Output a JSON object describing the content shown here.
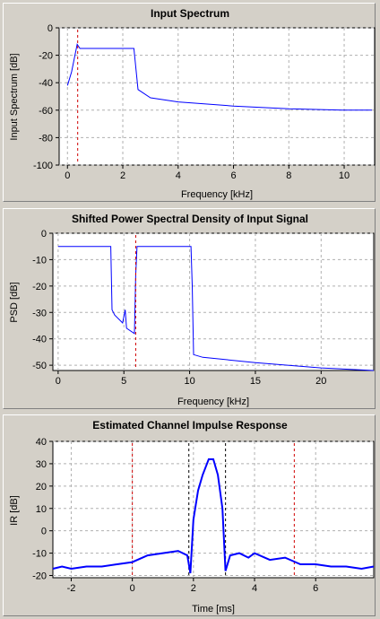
{
  "chart_data": [
    {
      "type": "line",
      "title": "Input Spectrum",
      "xlabel": "Frequency [kHz]",
      "ylabel": "Input Spectrum [dB]",
      "xlim": [
        -0.3,
        11.1
      ],
      "ylim": [
        -100,
        0
      ],
      "xticks": [
        0,
        2,
        4,
        6,
        8,
        10
      ],
      "yticks": [
        0,
        -20,
        -40,
        -60,
        -80,
        -100
      ],
      "grid": true,
      "series": [
        {
          "x": [
            0.0,
            0.15,
            0.35,
            0.45,
            2.4,
            2.55,
            3.0,
            4.0,
            6.0,
            8.0,
            10.0,
            11.0
          ],
          "y": [
            -42,
            -32,
            -12,
            -15,
            -15,
            -45,
            -51,
            -54,
            -57,
            -59,
            -60,
            -60
          ]
        }
      ],
      "markers": [
        {
          "x": 0.37,
          "color": "#d00000"
        }
      ]
    },
    {
      "type": "line",
      "title": "Shifted Power Spectral Density of Input Signal",
      "xlabel": "Frequency [kHz]",
      "ylabel": "PSD [dB]",
      "xlim": [
        -0.4,
        24
      ],
      "ylim": [
        -52,
        0
      ],
      "xticks": [
        0,
        5,
        10,
        15,
        20
      ],
      "yticks": [
        0,
        -10,
        -20,
        -30,
        -40,
        -50
      ],
      "grid": true,
      "series": [
        {
          "x": [
            0,
            3.5,
            4.0,
            4.1,
            4.3,
            4.9,
            5.1,
            5.2,
            5.8,
            5.9,
            6.0,
            6.3,
            10.1,
            10.2,
            10.3,
            11,
            15,
            20,
            24
          ],
          "y": [
            -5,
            -5,
            -5,
            -29,
            -31,
            -34,
            -29,
            -36,
            -38,
            -16,
            -5,
            -5,
            -5,
            -20,
            -46,
            -47,
            -49,
            -51,
            -52
          ]
        }
      ],
      "markers": [
        {
          "x": 5.9,
          "color": "#d00000"
        }
      ]
    },
    {
      "type": "line",
      "title": "Estimated Channel Impulse Response",
      "xlabel": "Time [ms]",
      "ylabel": "IR [dB]",
      "xlim": [
        -2.6,
        7.9
      ],
      "ylim": [
        -21,
        40
      ],
      "xticks": [
        -2,
        0,
        2,
        4,
        6
      ],
      "yticks": [
        40,
        30,
        20,
        10,
        0,
        -10,
        -20
      ],
      "grid": true,
      "series": [
        {
          "x": [
            -2.6,
            -2.3,
            -2.0,
            -1.5,
            -1.0,
            -0.5,
            0.0,
            0.5,
            1.0,
            1.5,
            1.8,
            1.9,
            2.0,
            2.15,
            2.3,
            2.5,
            2.65,
            2.8,
            2.95,
            3.05,
            3.2,
            3.5,
            3.8,
            4.0,
            4.5,
            5.0,
            5.5,
            6.0,
            6.5,
            7.0,
            7.5,
            7.9
          ],
          "y": [
            -17,
            -16,
            -17,
            -16,
            -16,
            -15,
            -14,
            -11,
            -10,
            -9,
            -11,
            -19,
            5,
            18,
            25,
            32,
            32,
            25,
            10,
            -18,
            -11,
            -10,
            -12,
            -10,
            -13,
            -12,
            -15,
            -15,
            -16,
            -16,
            -17,
            -16
          ]
        }
      ],
      "markers": [
        {
          "x": 0.0,
          "color": "#d00000"
        },
        {
          "x": 1.85,
          "color": "#000000"
        },
        {
          "x": 3.05,
          "color": "#000000"
        },
        {
          "x": 5.3,
          "color": "#d00000"
        }
      ]
    }
  ]
}
